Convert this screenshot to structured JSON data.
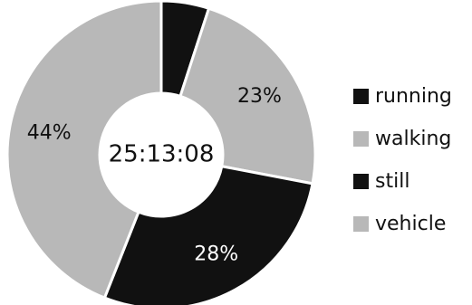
{
  "chart_data": {
    "type": "pie",
    "donut": true,
    "center_label": "25:13:08",
    "legend_position": "right",
    "series": [
      {
        "name": "running",
        "value": 5,
        "color": "#111111"
      },
      {
        "name": "walking",
        "value": 23,
        "label": "23%",
        "color": "#b8b8b8"
      },
      {
        "name": "still",
        "value": 28,
        "label": "28%",
        "color": "#111111"
      },
      {
        "name": "vehicle",
        "value": 44,
        "label": "44%",
        "color": "#b8b8b8"
      }
    ]
  }
}
